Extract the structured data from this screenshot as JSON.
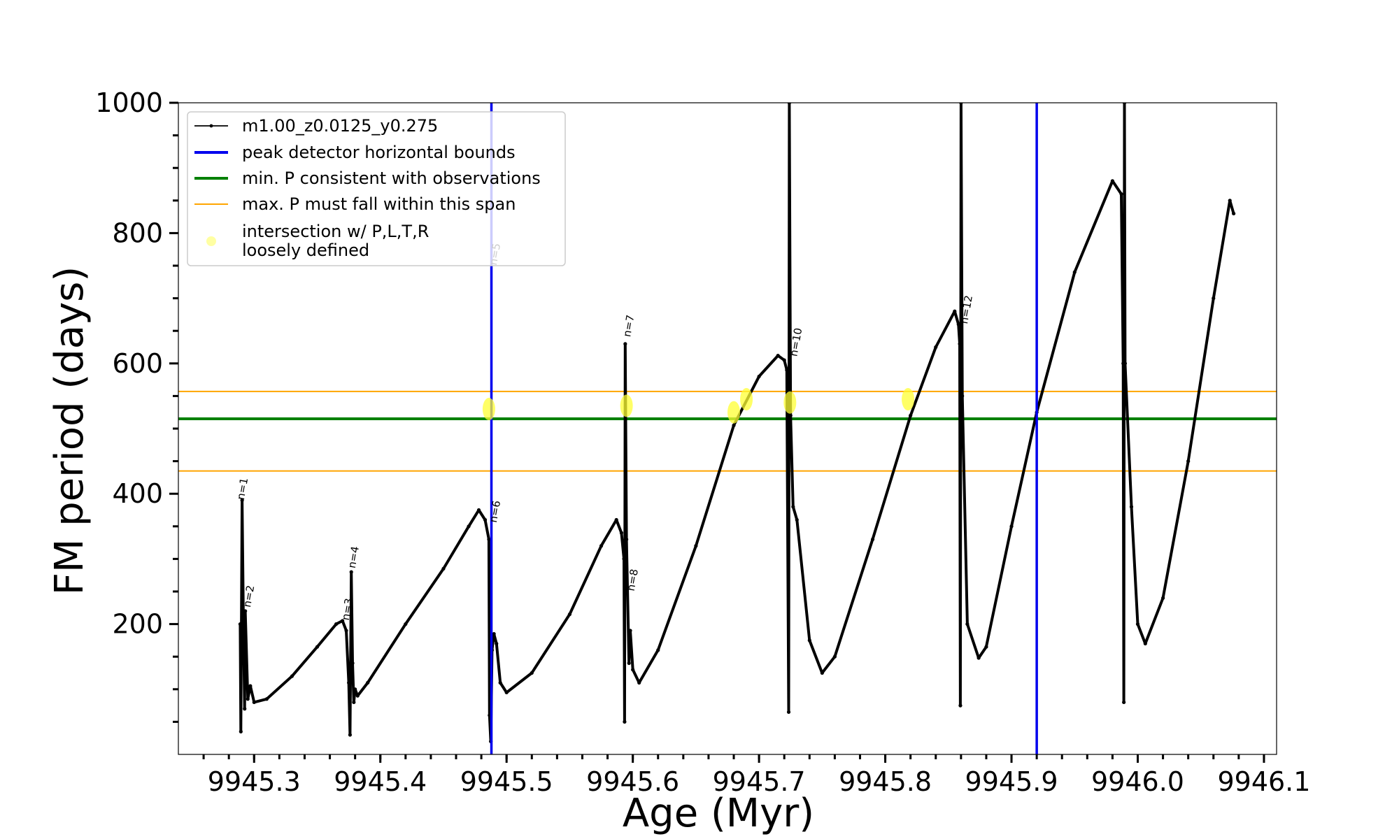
{
  "chart_data": {
    "type": "line",
    "title": "",
    "xlabel": "Age (Myr)",
    "ylabel": "FM period (days)",
    "xlim": [
      9945.24,
      9946.11
    ],
    "ylim": [
      0,
      1000
    ],
    "xticks": [
      9945.3,
      9945.4,
      9945.5,
      9945.6,
      9945.7,
      9945.8,
      9945.9,
      9946.0,
      9946.1
    ],
    "xtick_labels": [
      "9945.3",
      "9945.4",
      "9945.5",
      "9945.6",
      "9945.7",
      "9945.8",
      "9945.9",
      "9946.0",
      "9946.1"
    ],
    "yticks": [
      200,
      400,
      600,
      800,
      1000
    ],
    "ytick_labels": [
      "200",
      "400",
      "600",
      "800",
      "1000"
    ],
    "grid": false,
    "legend_position": "top-left",
    "legend": [
      {
        "label": "m1.00_z0.0125_y0.275",
        "kind": "line-marker",
        "color": "#000000"
      },
      {
        "label": "peak detector horizontal bounds",
        "kind": "line",
        "color": "#0000ee"
      },
      {
        "label": "min. P consistent with observations",
        "kind": "line",
        "color": "#008000"
      },
      {
        "label": "max. P must fall within this span",
        "kind": "line",
        "color": "#ffa500"
      },
      {
        "label": "intersection w/ P,L,T,R\nloosely defined",
        "kind": "dot",
        "color": "#ffff66"
      }
    ],
    "series": [
      {
        "name": "m1.00_z0.0125_y0.275",
        "color": "#000000",
        "points": [
          [
            9945.289,
            200
          ],
          [
            9945.2895,
            35
          ],
          [
            9945.2905,
            390
          ],
          [
            9945.2915,
            210
          ],
          [
            9945.2925,
            70
          ],
          [
            9945.293,
            220
          ],
          [
            9945.295,
            85
          ],
          [
            9945.297,
            105
          ],
          [
            9945.3,
            80
          ],
          [
            9945.31,
            85
          ],
          [
            9945.33,
            120
          ],
          [
            9945.35,
            165
          ],
          [
            9945.365,
            200
          ],
          [
            9945.37,
            205
          ],
          [
            9945.373,
            190
          ],
          [
            9945.375,
            110
          ],
          [
            9945.376,
            30
          ],
          [
            9945.377,
            280
          ],
          [
            9945.378,
            140
          ],
          [
            9945.379,
            80
          ],
          [
            9945.38,
            100
          ],
          [
            9945.382,
            90
          ],
          [
            9945.39,
            110
          ],
          [
            9945.42,
            200
          ],
          [
            9945.45,
            285
          ],
          [
            9945.47,
            350
          ],
          [
            9945.478,
            375
          ],
          [
            9945.483,
            360
          ],
          [
            9945.486,
            330
          ],
          [
            9945.4865,
            60
          ],
          [
            9945.4875,
            20
          ],
          [
            9945.4885,
            160
          ],
          [
            9945.49,
            185
          ],
          [
            9945.492,
            170
          ],
          [
            9945.495,
            110
          ],
          [
            9945.5,
            95
          ],
          [
            9945.52,
            125
          ],
          [
            9945.55,
            215
          ],
          [
            9945.575,
            320
          ],
          [
            9945.587,
            360
          ],
          [
            9945.591,
            340
          ],
          [
            9945.593,
            300
          ],
          [
            9945.5935,
            50
          ],
          [
            9945.594,
            630
          ],
          [
            9945.595,
            330
          ],
          [
            9945.597,
            140
          ],
          [
            9945.598,
            190
          ],
          [
            9945.6,
            130
          ],
          [
            9945.605,
            110
          ],
          [
            9945.62,
            160
          ],
          [
            9945.65,
            320
          ],
          [
            9945.68,
            505
          ],
          [
            9945.7,
            580
          ],
          [
            9945.715,
            612
          ],
          [
            9945.72,
            605
          ],
          [
            9945.722,
            590
          ],
          [
            9945.7235,
            65
          ],
          [
            9945.724,
            1000
          ],
          [
            9945.725,
            520
          ],
          [
            9945.727,
            380
          ],
          [
            9945.73,
            360
          ],
          [
            9945.74,
            175
          ],
          [
            9945.75,
            125
          ],
          [
            9945.76,
            150
          ],
          [
            9945.79,
            330
          ],
          [
            9945.82,
            520
          ],
          [
            9945.84,
            625
          ],
          [
            9945.855,
            680
          ],
          [
            9945.858,
            660
          ],
          [
            9945.859,
            630
          ],
          [
            9945.8595,
            75
          ],
          [
            9945.86,
            1000
          ],
          [
            9945.861,
            550
          ],
          [
            9945.865,
            200
          ],
          [
            9945.874,
            148
          ],
          [
            9945.88,
            165
          ],
          [
            9945.9,
            350
          ],
          [
            9945.92,
            525
          ],
          [
            9945.95,
            740
          ],
          [
            9945.98,
            880
          ],
          [
            9945.987,
            860
          ],
          [
            9945.9885,
            600
          ],
          [
            9945.989,
            80
          ],
          [
            9945.9895,
            1000
          ],
          [
            9945.99,
            600
          ],
          [
            9945.995,
            380
          ],
          [
            9946.0,
            200
          ],
          [
            9946.006,
            170
          ],
          [
            9946.02,
            240
          ],
          [
            9946.04,
            450
          ],
          [
            9946.06,
            700
          ],
          [
            9946.073,
            850
          ],
          [
            9946.076,
            830
          ]
        ]
      }
    ],
    "reference_lines": {
      "peak_detector_bounds_x": [
        9945.488,
        9945.92
      ],
      "min_period_y": 515,
      "max_period_span_y": [
        435,
        557
      ]
    },
    "intersections": [
      [
        9945.486,
        530
      ],
      [
        9945.595,
        535
      ],
      [
        9945.68,
        525
      ],
      [
        9945.69,
        545
      ],
      [
        9945.7245,
        540
      ],
      [
        9945.818,
        545
      ]
    ],
    "annotations": [
      {
        "text": "n=1",
        "x": 9945.292,
        "y": 390
      },
      {
        "text": "n=2",
        "x": 9945.297,
        "y": 225
      },
      {
        "text": "n=3",
        "x": 9945.375,
        "y": 205
      },
      {
        "text": "n=4",
        "x": 9945.38,
        "y": 285
      },
      {
        "text": "n=5",
        "x": 9945.492,
        "y": 750
      },
      {
        "text": "n=6",
        "x": 9945.492,
        "y": 355
      },
      {
        "text": "n=7",
        "x": 9945.598,
        "y": 640
      },
      {
        "text": "n=8",
        "x": 9945.601,
        "y": 250
      },
      {
        "text": "n=10",
        "x": 9945.73,
        "y": 610
      },
      {
        "text": "n=12",
        "x": 9945.865,
        "y": 660
      }
    ]
  }
}
